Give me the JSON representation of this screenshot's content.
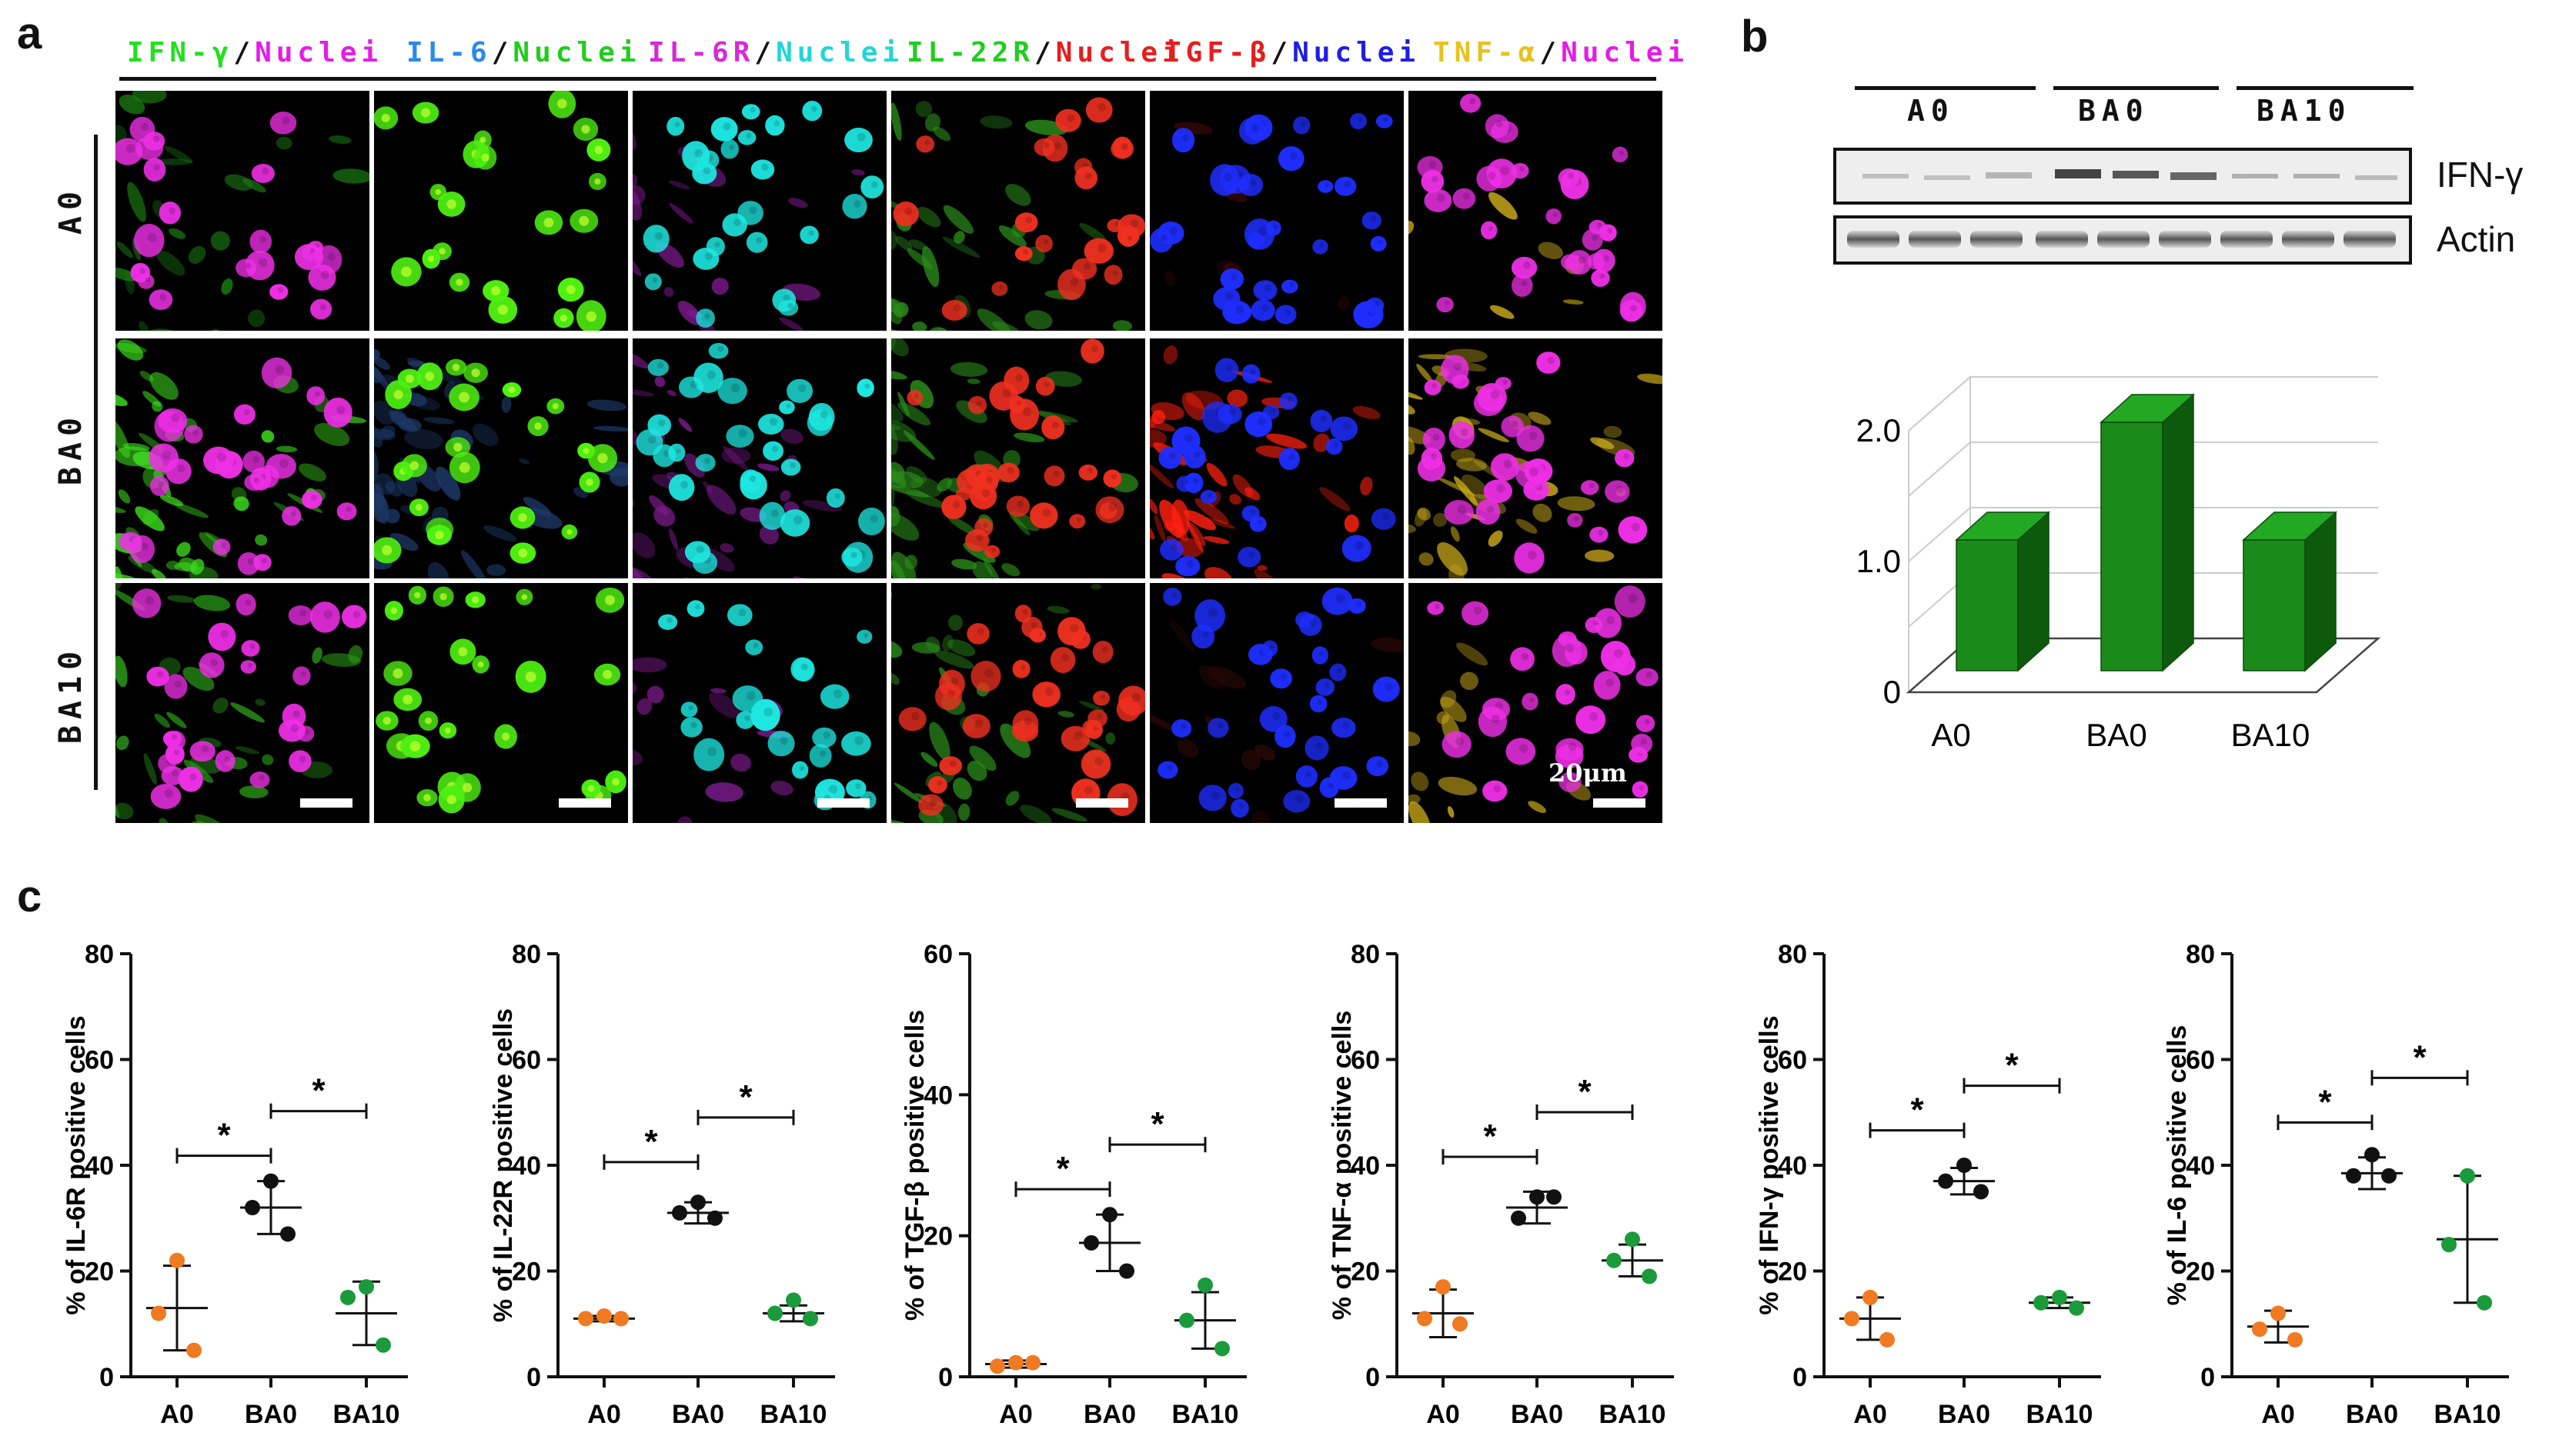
{
  "panel_labels": {
    "a": "a",
    "b": "b",
    "c": "c"
  },
  "panel_a": {
    "headers": [
      {
        "parts": [
          {
            "text": "IFN-γ",
            "color": "#22e01e"
          },
          {
            "text": "/",
            "color": "#111111"
          },
          {
            "text": "Nuclei",
            "color": "#e61be6"
          }
        ]
      },
      {
        "parts": [
          {
            "text": "IL-6",
            "color": "#2a8be8"
          },
          {
            "text": "/",
            "color": "#111111"
          },
          {
            "text": "Nuclei",
            "color": "#22cc1e"
          }
        ]
      },
      {
        "parts": [
          {
            "text": "IL-6R",
            "color": "#d62ad6"
          },
          {
            "text": "/",
            "color": "#111111"
          },
          {
            "text": "Nuclei",
            "color": "#22d6d6"
          }
        ]
      },
      {
        "parts": [
          {
            "text": "IL-22R",
            "color": "#22cc1e"
          },
          {
            "text": "/",
            "color": "#111111"
          },
          {
            "text": "Nuclei",
            "color": "#e61e1e"
          }
        ]
      },
      {
        "parts": [
          {
            "text": "TGF-β",
            "color": "#e61e1e"
          },
          {
            "text": "/",
            "color": "#111111"
          },
          {
            "text": "Nuclei",
            "color": "#1e1ee6"
          }
        ]
      },
      {
        "parts": [
          {
            "text": "TNF-α",
            "color": "#e6c21e"
          },
          {
            "text": "/",
            "color": "#111111"
          },
          {
            "text": "Nuclei",
            "color": "#e61be6"
          }
        ]
      }
    ],
    "rows": [
      "A0",
      "BA0",
      "BA10"
    ],
    "scale_label": "20μm",
    "colors": {
      "ifn_bg": "#0a1a08",
      "ifn_green": "#3ee01e",
      "magenta": "#ee2fe6",
      "il6_green": "#4ef012",
      "il6_blue": "#1e3a6a",
      "cyan": "#1ee6e0",
      "purple": "#7a1a8a",
      "red": "#f03020",
      "green_dim": "#2a8a1a",
      "blue": "#1e2eff",
      "red_tgf": "#ff2010",
      "yellow": "#c8a81a"
    }
  },
  "panel_b": {
    "lanes": [
      "A0",
      "BA0",
      "BA10"
    ],
    "bands": [
      "IFN-γ",
      "Actin"
    ],
    "chart_data": {
      "type": "bar",
      "style": "3d",
      "categories": [
        "A0",
        "BA0",
        "BA10"
      ],
      "values": [
        1.0,
        1.9,
        1.0
      ],
      "ytick_labels": [
        "0",
        "1.0",
        "2.0"
      ],
      "ylim": [
        0,
        2.0
      ],
      "bar_color": "#1a8a1a"
    }
  },
  "panel_c": {
    "chart_data": [
      {
        "type": "scatter",
        "ylabel": "% of IL-6R positive cells",
        "categories": [
          "A0",
          "BA0",
          "BA10"
        ],
        "ylim": [
          0,
          80
        ],
        "yticks": [
          0,
          20,
          40,
          60,
          80
        ],
        "points": [
          [
            22,
            12,
            5
          ],
          [
            37,
            32,
            27
          ],
          [
            17,
            15,
            6
          ]
        ],
        "means": [
          13,
          32,
          12
        ],
        "sds": [
          8,
          5,
          6
        ],
        "stars": [
          "*",
          "*"
        ]
      },
      {
        "type": "scatter",
        "ylabel": "% of IL-22R positive cells",
        "categories": [
          "A0",
          "BA0",
          "BA10"
        ],
        "ylim": [
          0,
          80
        ],
        "yticks": [
          0,
          20,
          40,
          60,
          80
        ],
        "points": [
          [
            11.5,
            11,
            11
          ],
          [
            33,
            31,
            30
          ],
          [
            14.5,
            12,
            11
          ]
        ],
        "means": [
          11,
          31,
          12
        ],
        "sds": [
          0.5,
          2,
          1.5
        ],
        "stars": [
          "*",
          "*"
        ]
      },
      {
        "type": "scatter",
        "ylabel": "% of TGF-β positive cells",
        "categories": [
          "A0",
          "BA0",
          "BA10"
        ],
        "ylim": [
          0,
          60
        ],
        "yticks": [
          0,
          20,
          40,
          60
        ],
        "points": [
          [
            2,
            1.5,
            2
          ],
          [
            23,
            19,
            15
          ],
          [
            13,
            8,
            4
          ]
        ],
        "means": [
          1.8,
          19,
          8
        ],
        "sds": [
          0.5,
          4,
          4
        ],
        "stars": [
          "*",
          "*"
        ]
      },
      {
        "type": "scatter",
        "ylabel": "% of TNF-α positive cells",
        "categories": [
          "A0",
          "BA0",
          "BA10"
        ],
        "ylim": [
          0,
          80
        ],
        "yticks": [
          0,
          20,
          40,
          60,
          80
        ],
        "points": [
          [
            17,
            11,
            10
          ],
          [
            34,
            30,
            34
          ],
          [
            26,
            22,
            19
          ]
        ],
        "means": [
          12,
          32,
          22
        ],
        "sds": [
          4.5,
          3,
          3
        ],
        "stars": [
          "*",
          "*"
        ]
      },
      {
        "type": "scatter",
        "ylabel": "% of IFN-γ positive cells",
        "categories": [
          "A0",
          "BA0",
          "BA10"
        ],
        "ylim": [
          0,
          80
        ],
        "yticks": [
          0,
          20,
          40,
          60,
          80
        ],
        "points": [
          [
            15,
            11,
            7
          ],
          [
            40,
            37,
            35
          ],
          [
            15,
            14,
            13
          ]
        ],
        "means": [
          11,
          37,
          14
        ],
        "sds": [
          4,
          2.5,
          1
        ],
        "stars": [
          "*",
          "*"
        ]
      },
      {
        "type": "scatter",
        "ylabel": "% of IL-6 positive cells",
        "categories": [
          "A0",
          "BA0",
          "BA10"
        ],
        "ylim": [
          0,
          80
        ],
        "yticks": [
          0,
          20,
          40,
          60,
          80
        ],
        "points": [
          [
            12,
            9,
            7
          ],
          [
            42,
            38,
            38
          ],
          [
            38,
            25,
            14
          ]
        ],
        "means": [
          9.5,
          38.5,
          26
        ],
        "sds": [
          3,
          3,
          12
        ],
        "stars": [
          "*",
          "*"
        ]
      }
    ],
    "group_colors": [
      "#f07a22",
      "#111111",
      "#1a9a3a"
    ]
  }
}
